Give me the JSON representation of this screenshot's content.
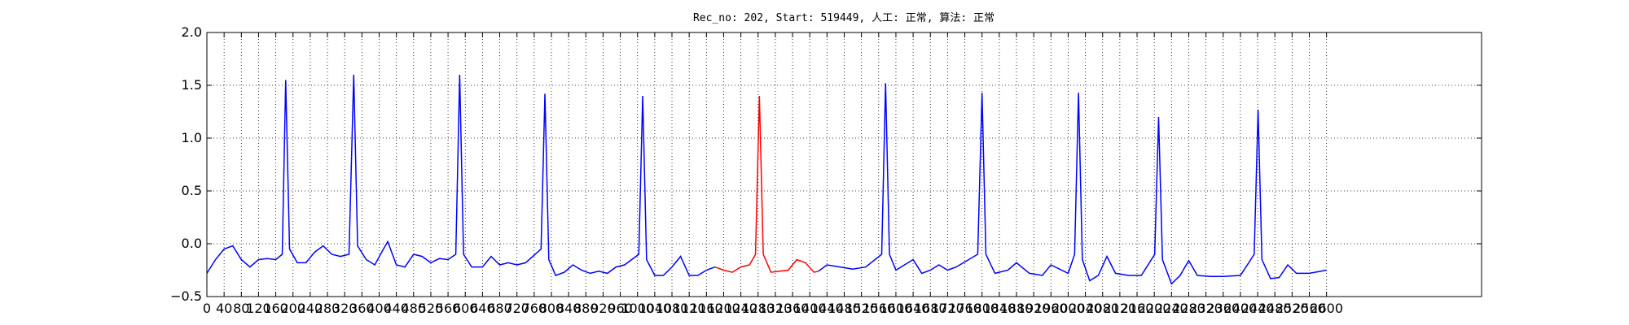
{
  "chart_data": {
    "type": "line",
    "title": "Rec_no: 202, Start: 519449, 人工: 正常, 算法: 正常",
    "xlim": [
      0,
      2960
    ],
    "xticks": [
      0,
      40,
      80,
      120,
      160,
      200,
      240,
      280,
      320,
      360,
      400,
      440,
      480,
      520,
      560,
      600,
      640,
      680,
      720,
      760,
      800,
      840,
      880,
      920,
      960,
      1000,
      1040,
      1080,
      1120,
      1160,
      1200,
      1240,
      1280,
      1320,
      1360,
      1400,
      1440,
      1480,
      1520,
      1560,
      1600,
      1640,
      1680,
      1720,
      1760,
      1800,
      1840,
      1880,
      1920,
      1960,
      2000,
      2040,
      2080,
      2120,
      2160,
      2200,
      2240,
      2280,
      2320,
      2360,
      2400,
      2440,
      2480,
      2520,
      2560,
      2600
    ],
    "ylim": [
      -0.5,
      2.0
    ],
    "yticks": [
      {
        "value": -0.5,
        "label": "−0.5"
      },
      {
        "value": 0,
        "label": "0.0"
      },
      0.5,
      {
        "value": 1,
        "label": "1.0"
      },
      1.5,
      {
        "value": 2,
        "label": "2.0"
      }
    ],
    "grid": true,
    "series": [
      {
        "color": "#0000ff",
        "x": [
          0,
          20,
          40,
          60,
          80,
          100,
          120,
          140,
          160,
          175,
          183,
          192,
          210,
          230,
          250,
          270,
          290,
          310,
          330,
          341,
          350,
          370,
          390,
          410,
          420,
          440,
          460,
          480,
          500,
          520,
          540,
          560,
          578,
          587,
          596,
          615,
          640,
          660,
          680,
          700,
          720,
          740,
          776,
          785,
          794,
          810,
          830,
          850,
          870,
          890,
          910,
          930,
          950,
          970,
          1003,
          1012,
          1021,
          1040,
          1060,
          1080,
          1100,
          1120,
          1140,
          1160,
          1180
        ],
        "values": [
          -0.28,
          -0.15,
          -0.05,
          -0.02,
          -0.15,
          -0.22,
          -0.15,
          -0.14,
          -0.15,
          -0.1,
          1.55,
          -0.05,
          -0.18,
          -0.18,
          -0.08,
          -0.02,
          -0.1,
          -0.12,
          -0.1,
          1.6,
          -0.02,
          -0.15,
          -0.2,
          -0.05,
          0.02,
          -0.2,
          -0.22,
          -0.1,
          -0.12,
          -0.18,
          -0.14,
          -0.15,
          -0.1,
          1.6,
          -0.1,
          -0.22,
          -0.22,
          -0.12,
          -0.2,
          -0.18,
          -0.2,
          -0.18,
          -0.05,
          1.42,
          -0.15,
          -0.3,
          -0.27,
          -0.2,
          -0.25,
          -0.28,
          -0.26,
          -0.28,
          -0.22,
          -0.2,
          -0.1,
          1.4,
          -0.15,
          -0.3,
          -0.3,
          -0.22,
          -0.12,
          -0.3,
          -0.3,
          -0.25,
          -0.22
        ]
      },
      {
        "color": "#ff0000",
        "x": [
          1180,
          1200,
          1220,
          1240,
          1260,
          1274,
          1283,
          1292,
          1310,
          1330,
          1350,
          1370,
          1390,
          1410,
          1420
        ],
        "values": [
          -0.22,
          -0.25,
          -0.27,
          -0.22,
          -0.2,
          -0.1,
          1.4,
          -0.1,
          -0.27,
          -0.26,
          -0.25,
          -0.15,
          -0.18,
          -0.27,
          -0.26
        ]
      },
      {
        "color": "#0000ff",
        "x": [
          1420,
          1440,
          1470,
          1500,
          1530,
          1567,
          1576,
          1585,
          1600,
          1620,
          1640,
          1660,
          1680,
          1700,
          1720,
          1740,
          1790,
          1800,
          1809,
          1830,
          1860,
          1880,
          1910,
          1940,
          1960,
          2000,
          2015,
          2024,
          2033,
          2050,
          2070,
          2090,
          2110,
          2140,
          2170,
          2201,
          2210,
          2219,
          2240,
          2260,
          2280,
          2300,
          2330,
          2360,
          2400,
          2432,
          2441,
          2450,
          2470,
          2490,
          2510,
          2530,
          2560,
          2600
        ],
        "values": [
          -0.26,
          -0.2,
          -0.22,
          -0.24,
          -0.22,
          -0.1,
          1.52,
          -0.1,
          -0.25,
          -0.2,
          -0.15,
          -0.28,
          -0.25,
          -0.2,
          -0.25,
          -0.22,
          -0.1,
          1.43,
          -0.1,
          -0.28,
          -0.25,
          -0.18,
          -0.28,
          -0.3,
          -0.2,
          -0.28,
          -0.1,
          1.43,
          -0.15,
          -0.35,
          -0.3,
          -0.12,
          -0.28,
          -0.3,
          -0.3,
          -0.1,
          1.2,
          -0.15,
          -0.38,
          -0.3,
          -0.16,
          -0.3,
          -0.31,
          -0.31,
          -0.3,
          -0.1,
          1.27,
          -0.15,
          -0.33,
          -0.32,
          -0.2,
          -0.28,
          -0.28,
          -0.25
        ]
      }
    ]
  }
}
